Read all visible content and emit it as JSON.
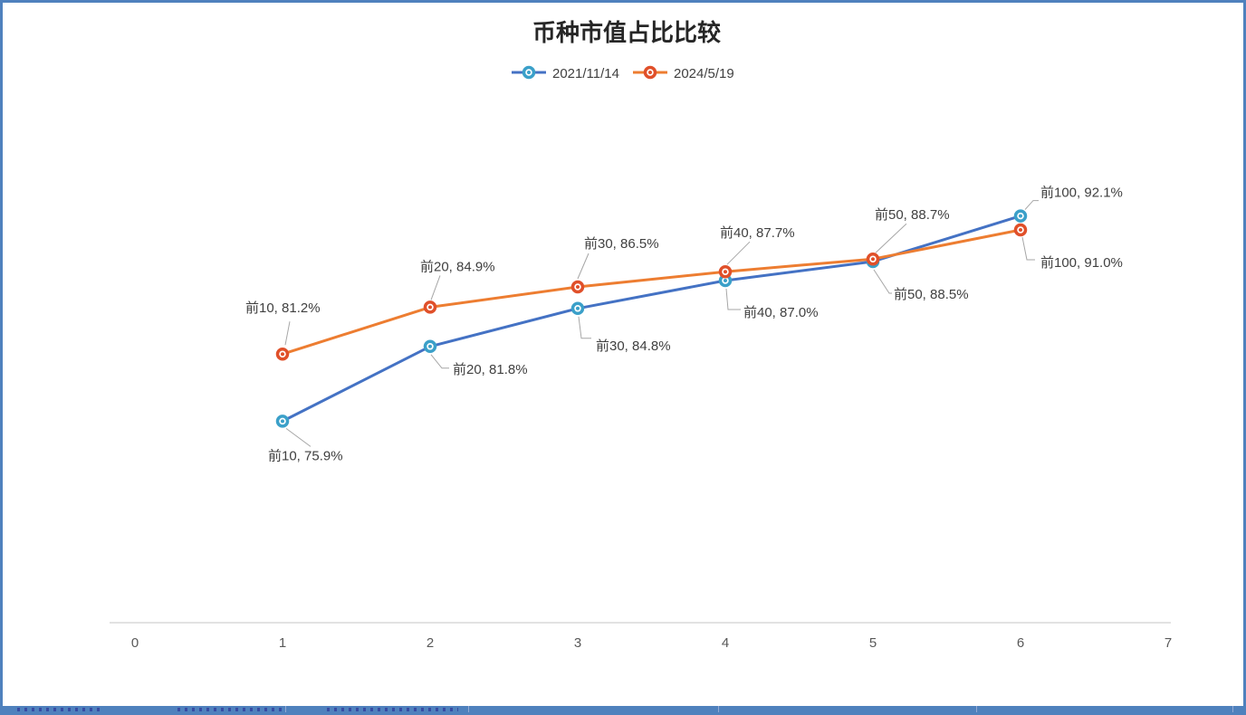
{
  "window": {
    "border_color": "#4f81bd"
  },
  "chart_data": {
    "type": "line",
    "title": "币种市值占比比较",
    "categories": [
      "前10",
      "前20",
      "前30",
      "前40",
      "前50",
      "前100"
    ],
    "x": [
      1,
      2,
      3,
      4,
      5,
      6
    ],
    "x_ticks": [
      "0",
      "1",
      "2",
      "3",
      "4",
      "5",
      "6",
      "7"
    ],
    "xlim": [
      0,
      7
    ],
    "grid": false,
    "legend_position": "top-center",
    "series": [
      {
        "name": "2021/11/14",
        "line_color": "#4472c4",
        "marker_color": "#3ba0c9",
        "values": [
          75.9,
          81.8,
          84.8,
          87.0,
          88.5,
          92.1
        ],
        "point_labels": [
          "前10, 75.9%",
          "前20, 81.8%",
          "前30, 84.8%",
          "前40, 87.0%",
          "前50, 88.5%",
          "前100, 92.1%"
        ]
      },
      {
        "name": "2024/5/19",
        "line_color": "#ed7d31",
        "marker_color": "#e0502a",
        "values": [
          81.2,
          84.9,
          86.5,
          87.7,
          88.7,
          91.0
        ],
        "point_labels": [
          "前10, 81.2%",
          "前20, 84.9%",
          "前30, 86.5%",
          "前40, 87.7%",
          "前50, 88.7%",
          "前100, 91.0%"
        ]
      }
    ],
    "colors": {
      "axis_line": "#d9d9d9",
      "tick_text": "#595959",
      "label_text": "#404040",
      "leader_line": "#a6a6a6",
      "title_text": "#262626"
    }
  }
}
